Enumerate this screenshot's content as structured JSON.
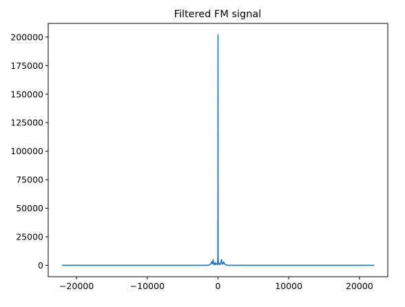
{
  "chart_data": {
    "type": "line",
    "title": "Filtered FM signal",
    "xlabel": "",
    "ylabel": "",
    "xlim": [
      -24000,
      24000
    ],
    "ylim": [
      -10000,
      212000
    ],
    "grid": false,
    "xticks": [
      -20000,
      -10000,
      0,
      10000,
      20000
    ],
    "xtick_labels": [
      "−20000",
      "−10000",
      "0",
      "10000",
      "20000"
    ],
    "yticks": [
      0,
      25000,
      50000,
      75000,
      100000,
      125000,
      150000,
      175000,
      200000
    ],
    "ytick_labels": [
      "0",
      "25000",
      "50000",
      "75000",
      "100000",
      "125000",
      "150000",
      "175000",
      "200000"
    ],
    "series": [
      {
        "color": "#1f77b4",
        "x": [
          -22050,
          -20000,
          -15000,
          -10000,
          -5000,
          -2000,
          -1500,
          -1200,
          -1000,
          -900,
          -800,
          -700,
          -600,
          -500,
          -400,
          -300,
          -200,
          -100,
          -50,
          -20,
          0,
          20,
          50,
          100,
          200,
          300,
          400,
          500,
          600,
          700,
          800,
          900,
          1000,
          1200,
          1500,
          2000,
          5000,
          10000,
          15000,
          20000,
          22050
        ],
        "y": [
          0,
          0,
          0,
          0,
          0,
          0,
          0,
          500,
          1500,
          3000,
          1200,
          5000,
          900,
          400,
          2500,
          600,
          1500,
          800,
          2000,
          8000,
          202000,
          8000,
          2000,
          800,
          1500,
          600,
          2500,
          5000,
          900,
          1200,
          3000,
          1500,
          800,
          300,
          0,
          0,
          0,
          0,
          0,
          0,
          0
        ]
      }
    ]
  }
}
